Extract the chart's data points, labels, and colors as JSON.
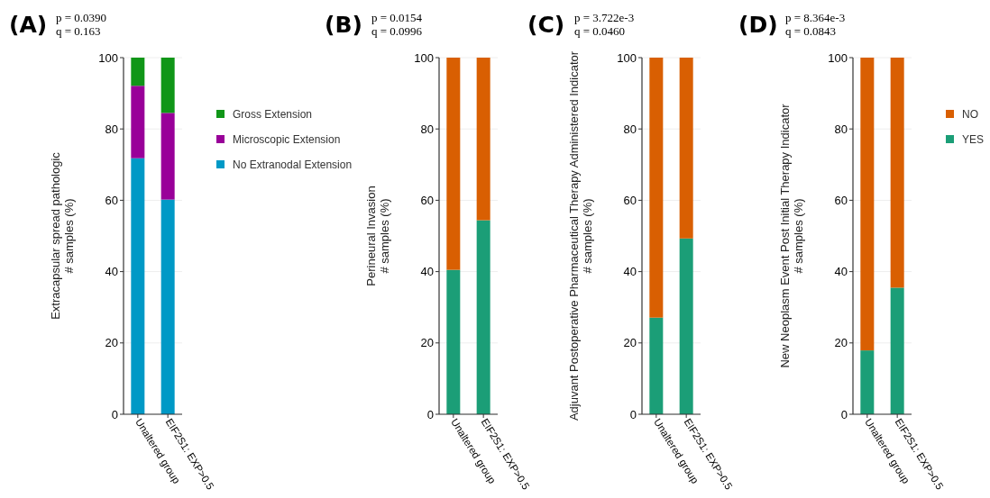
{
  "chart_data": [
    {
      "type": "bar",
      "title": "(A)",
      "annotations": [
        "p = 0.0390",
        "q = 0.163"
      ],
      "ylabel": "Extracapsular spread pathologic\n# samples (%)",
      "categories": [
        "Unaltered group",
        "EIF2S1: EXP>0.5"
      ],
      "stacked": true,
      "ylim": [
        0,
        100
      ],
      "yticks": [
        0,
        20,
        40,
        60,
        80,
        100
      ],
      "grid": "y",
      "legend": "right",
      "series": [
        {
          "name": "No Extranodal Extension",
          "color": "#0099c6",
          "values": [
            71.8,
            60.2
          ]
        },
        {
          "name": "Microscopic Extension",
          "color": "#990099",
          "values": [
            20.3,
            24.3
          ]
        },
        {
          "name": "Gross Extension",
          "color": "#109618",
          "values": [
            7.9,
            15.5
          ]
        }
      ]
    },
    {
      "type": "bar",
      "title": "(B)",
      "annotations": [
        "p = 0.0154",
        "q = 0.0996"
      ],
      "ylabel": "Perineural Invasion\n# samples (%)",
      "categories": [
        "Unaltered group",
        "EIF2S1: EXP>0.5"
      ],
      "stacked": true,
      "ylim": [
        0,
        100
      ],
      "yticks": [
        0,
        20,
        40,
        60,
        80,
        100
      ],
      "grid": "y",
      "series": [
        {
          "color": "#1b9e77",
          "values": [
            40.5,
            54.4
          ]
        },
        {
          "color": "#d95f02",
          "values": [
            59.5,
            45.6
          ]
        }
      ]
    },
    {
      "type": "bar",
      "title": "(C)",
      "annotations": [
        "p = 3.722e-3",
        "q = 0.0460"
      ],
      "ylabel": "Adjuvant Postoperative Pharmaceutical Therapy Administered Indicator\n# samples (%)",
      "categories": [
        "Unaltered group",
        "EIF2S1: EXP>0.5"
      ],
      "stacked": true,
      "ylim": [
        0,
        100
      ],
      "yticks": [
        0,
        20,
        40,
        60,
        80,
        100
      ],
      "grid": "y",
      "series": [
        {
          "color": "#1b9e77",
          "values": [
            27.1,
            49.3
          ]
        },
        {
          "color": "#d95f02",
          "values": [
            72.9,
            50.7
          ]
        }
      ]
    },
    {
      "type": "bar",
      "title": "(D)",
      "annotations": [
        "p = 8.364e-3",
        "q = 0.0843"
      ],
      "ylabel": "New Neoplasm Event Post Initial Therapy Indicator\n# samples (%)",
      "categories": [
        "Unaltered group",
        "EIF2S1: EXP>0.5"
      ],
      "stacked": true,
      "ylim": [
        0,
        100
      ],
      "yticks": [
        0,
        20,
        40,
        60,
        80,
        100
      ],
      "grid": "y",
      "legend": "right",
      "series": [
        {
          "name": "YES",
          "color": "#1b9e77",
          "values": [
            17.9,
            35.5
          ]
        },
        {
          "name": "NO",
          "color": "#d95f02",
          "values": [
            82.1,
            64.5
          ]
        }
      ]
    }
  ]
}
